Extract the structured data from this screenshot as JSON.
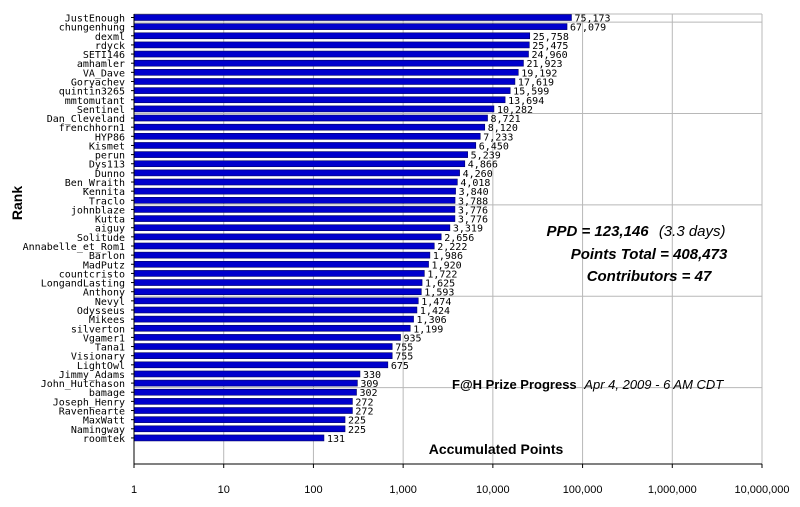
{
  "chart_data": {
    "type": "bar",
    "orientation": "horizontal",
    "x_scale": "log",
    "xlim": [
      1,
      10000000
    ],
    "x_ticks": [
      1,
      10,
      100,
      1000,
      10000,
      100000,
      1000000,
      10000000
    ],
    "x_tick_labels": [
      "1",
      "10",
      "100",
      "1,000",
      "10,000",
      "100,000",
      "1,000,000",
      "10,000,000"
    ],
    "xlabel": "Accumulated Points",
    "ylabel": "Rank",
    "grid": "vertical",
    "bar_color": "#0000cc",
    "bar_edge_color": "#000066",
    "categories": [
      "JustEnough",
      "chungenhung",
      "dexml",
      "rdyck",
      "SETI146",
      "amhamler",
      "VA_Dave",
      "Goryachev",
      "quintin3265",
      "mmtomutant",
      "Sentinel",
      "Dan_Cleveland",
      "frenchhorn1",
      "HYP86",
      "Kismet",
      "perun",
      "Dys113",
      "Dunno",
      "Ben_Wraith",
      "Kennita",
      "Traclo",
      "johnblaze",
      "Kutta",
      "aiguy",
      "Solitude",
      "Annabelle_et_Rom1",
      "Barlon",
      "MadPutz",
      "countcristo",
      "LongandLasting",
      "Anthony",
      "Nevyl",
      "Odysseus",
      "Mikees",
      "silverton",
      "Vgamer1",
      "Tana1",
      "Visionary",
      "LightOwl",
      "Jimmy_Adams",
      "John_Hutchason",
      "bamage",
      "Joseph_Henry",
      "Ravenhearte",
      "MaxWatt",
      "Namingway",
      "roomtek"
    ],
    "values": [
      75173,
      67079,
      25758,
      25475,
      24960,
      21923,
      19192,
      17619,
      15599,
      13694,
      10282,
      8721,
      8120,
      7233,
      6450,
      5239,
      4866,
      4260,
      4018,
      3840,
      3788,
      3776,
      3776,
      3319,
      2656,
      2222,
      1986,
      1920,
      1722,
      1625,
      1593,
      1474,
      1424,
      1306,
      1199,
      935,
      755,
      755,
      675,
      330,
      309,
      302,
      272,
      272,
      225,
      225,
      131
    ],
    "value_labels": [
      "75,173",
      "67,079",
      "25,758",
      "25,475",
      "24,960",
      "21,923",
      "19,192",
      "17,619",
      "15,599",
      "13,694",
      "10,282",
      "8,721",
      "8,120",
      "7,233",
      "6,450",
      "5,239",
      "4,866",
      "4,260",
      "4,018",
      "3,840",
      "3,788",
      "3,776",
      "3,776",
      "3,319",
      "2,656",
      "2,222",
      "1,986",
      "1,920",
      "1,722",
      "1,625",
      "1,593",
      "1,474",
      "1,424",
      "1,306",
      "1,199",
      "935",
      "755",
      "755",
      "675",
      "330",
      "309",
      "302",
      "272",
      "272",
      "225",
      "225",
      "131"
    ],
    "annotations": {
      "ppd_label": "PPD = 123,146",
      "ppd_note": "(3.3 days)",
      "points_total": "Points Total = 408,473",
      "contributors": "Contributors = 47",
      "progress_title": "F@H Prize Progress",
      "progress_date": "Apr 4, 2009 - 6 AM CDT"
    }
  }
}
